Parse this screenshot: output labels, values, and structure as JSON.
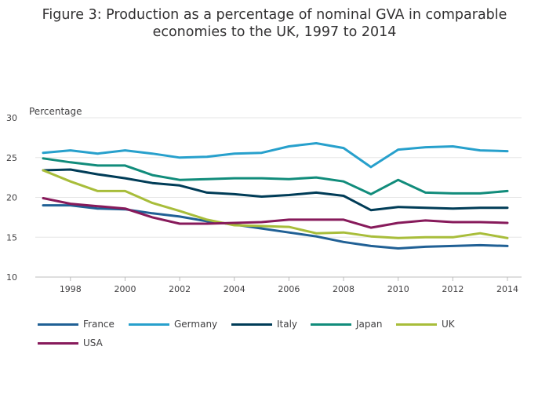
{
  "chart_data": {
    "type": "line",
    "title_line1": "Figure 3: Production as a percentage of nominal GVA in comparable",
    "title_line2": "economies to the UK, 1997 to 2014",
    "ylabel": "Percentage",
    "xlabel": "",
    "xlim": [
      1997,
      2014
    ],
    "ylim": [
      10,
      30
    ],
    "x_ticks": [
      1998,
      2000,
      2002,
      2004,
      2006,
      2008,
      2010,
      2012,
      2014
    ],
    "y_ticks": [
      10,
      15,
      20,
      25,
      30
    ],
    "grid": true,
    "legend_placement": "bottom",
    "x": [
      1997,
      1998,
      1999,
      2000,
      2001,
      2002,
      2003,
      2004,
      2005,
      2006,
      2007,
      2008,
      2009,
      2010,
      2011,
      2012,
      2013,
      2014
    ],
    "series": [
      {
        "name": "France",
        "color": "#206095",
        "values": [
          19.0,
          19.0,
          18.6,
          18.5,
          18.0,
          17.6,
          17.0,
          16.6,
          16.1,
          15.6,
          15.1,
          14.4,
          13.9,
          13.6,
          13.8,
          13.9,
          14.0,
          13.9
        ]
      },
      {
        "name": "Germany",
        "color": "#27a0cc",
        "values": [
          25.6,
          25.9,
          25.5,
          25.9,
          25.5,
          25.0,
          25.1,
          25.5,
          25.6,
          26.4,
          26.8,
          26.2,
          23.8,
          26.0,
          26.3,
          26.4,
          25.9,
          25.8
        ]
      },
      {
        "name": "Italy",
        "color": "#003c57",
        "values": [
          23.4,
          23.5,
          22.9,
          22.4,
          21.8,
          21.5,
          20.6,
          20.4,
          20.1,
          20.3,
          20.6,
          20.2,
          18.4,
          18.8,
          18.7,
          18.6,
          18.7,
          18.7
        ]
      },
      {
        "name": "Japan",
        "color": "#118c7b",
        "values": [
          24.9,
          24.4,
          24.0,
          24.0,
          22.8,
          22.2,
          22.3,
          22.4,
          22.4,
          22.3,
          22.5,
          22.0,
          20.4,
          22.2,
          20.6,
          20.5,
          20.5,
          20.8
        ]
      },
      {
        "name": "UK",
        "color": "#a8bd3a",
        "values": [
          23.4,
          22.0,
          20.8,
          20.8,
          19.3,
          18.3,
          17.2,
          16.5,
          16.4,
          16.3,
          15.5,
          15.6,
          15.1,
          14.9,
          15.0,
          15.0,
          15.5,
          14.9
        ]
      },
      {
        "name": "USA",
        "color": "#871a5b",
        "values": [
          19.9,
          19.2,
          18.9,
          18.6,
          17.5,
          16.7,
          16.7,
          16.8,
          16.9,
          17.2,
          17.2,
          17.2,
          16.2,
          16.8,
          17.1,
          16.9,
          16.9,
          16.8
        ]
      }
    ]
  }
}
